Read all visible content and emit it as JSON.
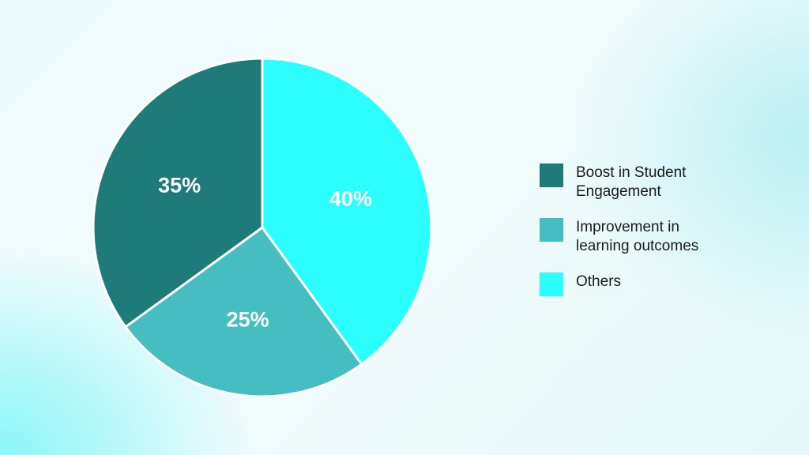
{
  "chart_data": {
    "type": "pie",
    "title": "",
    "categories": [
      "Others",
      "Improvement in learning outcomes",
      "Boost in Student Engagement"
    ],
    "values": [
      40,
      25,
      35
    ],
    "data_labels": [
      "40%",
      "25%",
      "35%"
    ],
    "colors": [
      "#2cfdfd",
      "#45bdc1",
      "#1f7b79"
    ],
    "start": "top",
    "direction": "clockwise",
    "legend_position": "right"
  },
  "legend": [
    {
      "label": "Boost in Student Engagement",
      "color": "#1f7b79"
    },
    {
      "label": "Improvement in learning outcomes",
      "color": "#45bdc1"
    },
    {
      "label": "Others",
      "color": "#2cfdfd"
    }
  ]
}
